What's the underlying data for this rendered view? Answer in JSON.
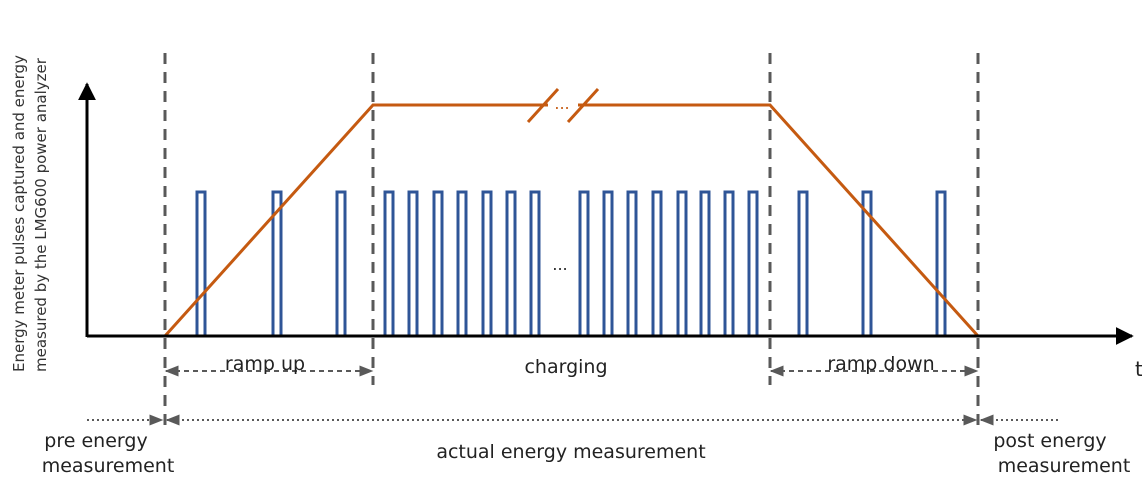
{
  "y_axis_label": {
    "line1": "Energy meter pulses captured and energy",
    "line2": "measured by the LMG600 power analyzer"
  },
  "x_axis_label": "t",
  "phases": {
    "ramp_up": "ramp up",
    "charging": "charging",
    "ramp_down": "ramp down"
  },
  "measurement": {
    "pre_line1": "pre energy",
    "pre_line2": "measurement",
    "actual": "actual energy measurement",
    "post_line1": "post energy",
    "post_line2": "measurement"
  },
  "ellipsis": "...",
  "colors": {
    "power_curve": "#C55A11",
    "pulses": "#2F5597",
    "axis": "#000000",
    "divider": "#595959"
  }
}
